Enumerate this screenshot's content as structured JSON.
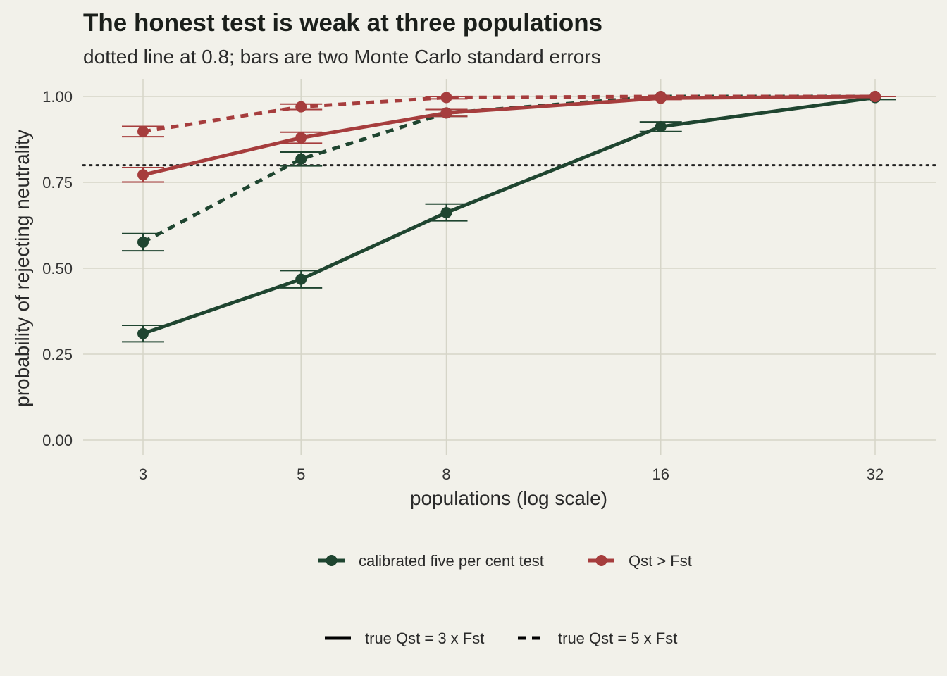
{
  "chart_data": {
    "type": "line",
    "title": "The honest test is weak at three populations",
    "subtitle": "dotted line at 0.8; bars are two Monte Carlo standard errors",
    "xlabel": "populations (log scale)",
    "ylabel": "probability of rejecting neutrality",
    "x_scale": "log",
    "x": [
      3,
      5,
      8,
      16,
      32
    ],
    "x_tick_labels": [
      "3",
      "5",
      "8",
      "16",
      "32"
    ],
    "ylim": [
      0,
      1
    ],
    "y_ticks": [
      0,
      0.25,
      0.5,
      0.75,
      1.0
    ],
    "y_tick_labels": [
      "0.00",
      "0.25",
      "0.50",
      "0.75",
      "1.00"
    ],
    "reference_line": {
      "y": 0.8,
      "style": "dotted"
    },
    "grid": true,
    "series": [
      {
        "test": "calibrated five per cent test",
        "truth": "true Qst = 3 x Fst",
        "color": "#1f4530",
        "linetype": "solid",
        "values": [
          0.31,
          0.468,
          0.662,
          0.912,
          0.997
        ],
        "err_low": [
          0.286,
          0.443,
          0.638,
          0.898,
          0.991
        ],
        "err_high": [
          0.334,
          0.493,
          0.687,
          0.926,
          1.0
        ]
      },
      {
        "test": "calibrated five per cent test",
        "truth": "true Qst = 5 x Fst",
        "color": "#1f4530",
        "linetype": "dashed",
        "values": [
          0.576,
          0.818,
          0.952,
          1.0,
          1.0
        ],
        "err_low": [
          0.551,
          0.798,
          0.942,
          1.0,
          1.0
        ],
        "err_high": [
          0.601,
          0.838,
          0.962,
          1.0,
          1.0
        ]
      },
      {
        "test": "Qst > Fst",
        "truth": "true Qst = 3 x Fst",
        "color": "#a63d3d",
        "linetype": "solid",
        "values": [
          0.772,
          0.88,
          0.952,
          0.995,
          1.0
        ],
        "err_low": [
          0.751,
          0.864,
          0.942,
          0.991,
          1.0
        ],
        "err_high": [
          0.793,
          0.896,
          0.962,
          0.999,
          1.0
        ]
      },
      {
        "test": "Qst > Fst",
        "truth": "true Qst = 5 x Fst",
        "color": "#a63d3d",
        "linetype": "dashed",
        "values": [
          0.898,
          0.97,
          0.997,
          1.0,
          1.0
        ],
        "err_low": [
          0.883,
          0.962,
          0.993,
          1.0,
          1.0
        ],
        "err_high": [
          0.913,
          0.978,
          1.0,
          1.0,
          1.0
        ]
      }
    ],
    "legend_color": {
      "placement": "bottom",
      "entries": [
        {
          "label": "calibrated five per cent test",
          "color": "#1f4530"
        },
        {
          "label": "Qst > Fst",
          "color": "#a63d3d"
        }
      ]
    },
    "legend_linetype": {
      "placement": "bottom",
      "entries": [
        {
          "label": "true Qst = 3 x Fst",
          "linetype": "solid"
        },
        {
          "label": "true Qst = 5 x Fst",
          "linetype": "dashed"
        }
      ]
    }
  }
}
